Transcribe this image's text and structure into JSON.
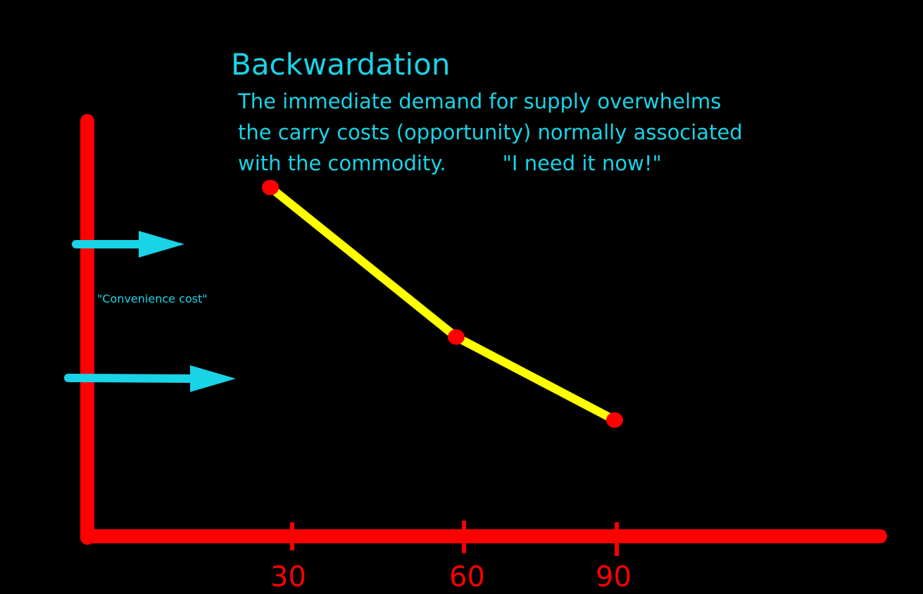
{
  "title": "Backwardation",
  "description": {
    "line1": "The immediate demand for supply overwhelms",
    "line2": "the carry costs  (opportunity) normally associated",
    "line3_a": "with the commodity.",
    "line3_b": "\"I need it now!\""
  },
  "annotation": "\"Convenience cost\"",
  "colors": {
    "axis": "#ff0000",
    "curve": "#ffff00",
    "points": "#ff0000",
    "text": "#19d3e6",
    "arrows": "#19d3e6"
  },
  "chart_data": {
    "type": "line",
    "x": [
      30,
      60,
      90
    ],
    "y_relative": [
      0.84,
      0.48,
      0.28
    ],
    "tick_labels": [
      "30",
      "60",
      "90"
    ]
  }
}
